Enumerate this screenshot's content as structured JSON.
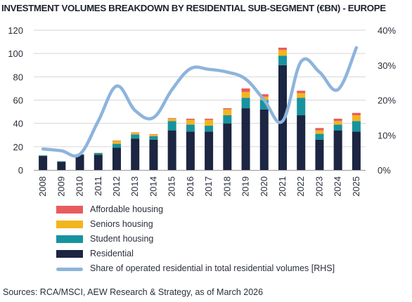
{
  "colors": {
    "affordable": "#e85b5e",
    "seniors": "#f2b51f",
    "student": "#17939f",
    "residential": "#1c2541",
    "share_line": "#8db4dc",
    "grid": "#d6d6d6"
  },
  "chart_data": {
    "type": "bar",
    "title": "INVESTMENT VOLUMES BREAKDOWN BY RESIDENTIAL SUB-SEGMENT (€BN) - EUROPE",
    "stacked": true,
    "categories": [
      "2008",
      "2009",
      "2010",
      "2011",
      "2012",
      "2013",
      "2014",
      "2015",
      "2016",
      "2017",
      "2018",
      "2019",
      "2020",
      "2021",
      "2022",
      "2023",
      "2024",
      "2025"
    ],
    "series": [
      {
        "name": "Residential",
        "values": [
          12,
          7,
          13,
          13,
          19,
          27,
          26,
          34,
          33,
          33,
          40,
          53,
          52,
          90,
          47,
          26,
          34,
          33
        ]
      },
      {
        "name": "Student housing",
        "values": [
          0.5,
          0.5,
          0.5,
          1.5,
          3.5,
          3.5,
          3,
          8,
          6,
          5,
          7,
          9,
          8,
          8,
          15,
          5,
          5,
          9
        ]
      },
      {
        "name": "Seniors housing",
        "values": [
          0,
          0,
          0,
          0.3,
          2.5,
          1.5,
          1.5,
          2,
          4,
          5,
          5,
          5,
          3,
          5,
          4,
          3,
          3,
          5
        ]
      },
      {
        "name": "Affordable housing",
        "values": [
          0,
          0,
          0,
          0,
          0.3,
          0.3,
          0.3,
          0.5,
          1,
          1,
          1,
          3,
          2,
          2,
          2,
          2,
          2,
          2
        ]
      },
      {
        "name": "Share of operated residential in total residential volumes [RHS]",
        "axis": "right",
        "type": "line",
        "values": [
          6,
          5.5,
          4.5,
          14,
          24,
          17,
          15,
          23,
          29,
          28.8,
          28,
          26,
          20,
          14,
          31,
          28,
          23,
          35
        ]
      }
    ],
    "y_left": {
      "min": 0,
      "max": 120,
      "ticks": [
        "0",
        "20",
        "40",
        "60",
        "80",
        "100",
        "120"
      ]
    },
    "y_right": {
      "min": 0,
      "max": 40,
      "ticks": [
        "0%",
        "10%",
        "20%",
        "30%",
        "40%"
      ]
    },
    "grid": true,
    "legend_position": "bottom-left"
  },
  "legend": [
    {
      "key": "affordable",
      "label": "Affordable housing",
      "type": "box"
    },
    {
      "key": "seniors",
      "label": "Seniors housing",
      "type": "box"
    },
    {
      "key": "student",
      "label": "Student housing",
      "type": "box"
    },
    {
      "key": "residential",
      "label": "Residential",
      "type": "box"
    },
    {
      "key": "share_line",
      "label": "Share of operated residential in total residential volumes [RHS]",
      "type": "line"
    }
  ],
  "source_text": "Sources: RCA/MSCI, AEW Research & Strategy, as of March 2026"
}
